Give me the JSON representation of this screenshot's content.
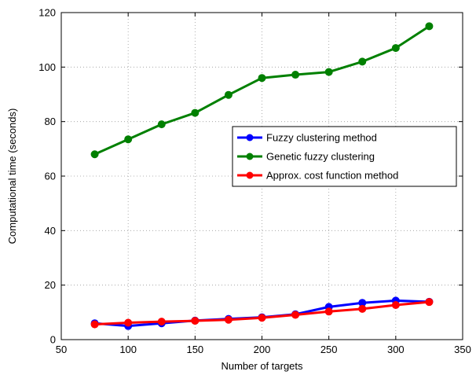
{
  "chart_data": {
    "type": "line",
    "title": "",
    "xlabel": "Number of targets",
    "ylabel": "Computational time (seconds)",
    "xlim": [
      50,
      350
    ],
    "ylim": [
      0,
      120
    ],
    "xticks": [
      50,
      100,
      150,
      200,
      250,
      300,
      350
    ],
    "yticks": [
      0,
      20,
      40,
      60,
      80,
      100,
      120
    ],
    "grid": true,
    "legend_position": "center-right",
    "x": [
      75,
      100,
      125,
      150,
      175,
      200,
      225,
      250,
      275,
      300,
      325
    ],
    "series": [
      {
        "name": "Fuzzy clustering method",
        "color": "#0000ff",
        "values": [
          6.0,
          5.0,
          6.0,
          7.0,
          7.6,
          8.2,
          9.3,
          12.0,
          13.5,
          14.3,
          13.9
        ]
      },
      {
        "name": "Genetic fuzzy clustering",
        "color": "#008000",
        "values": [
          68.0,
          73.5,
          79.0,
          83.2,
          89.8,
          96.0,
          97.2,
          98.2,
          102.0,
          107.0,
          115.0
        ]
      },
      {
        "name": "Approx. cost function method",
        "color": "#ff0000",
        "values": [
          5.6,
          6.2,
          6.6,
          6.9,
          7.3,
          8.0,
          9.1,
          10.3,
          11.3,
          12.7,
          13.8
        ]
      }
    ]
  }
}
